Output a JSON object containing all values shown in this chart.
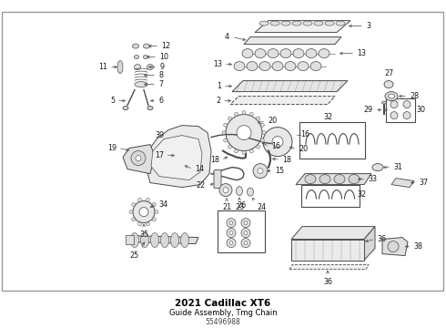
{
  "title": "2021 Cadillac XT6",
  "subtitle": "Guide Assembly, Tmg Chain",
  "part_number": "55496988",
  "bg_color": "#ffffff",
  "line_color": "#4a4a4a",
  "text_color": "#1a1a1a",
  "label_color": "#111111",
  "border_color": "#cccccc",
  "figsize": [
    4.9,
    3.6
  ],
  "dpi": 100
}
